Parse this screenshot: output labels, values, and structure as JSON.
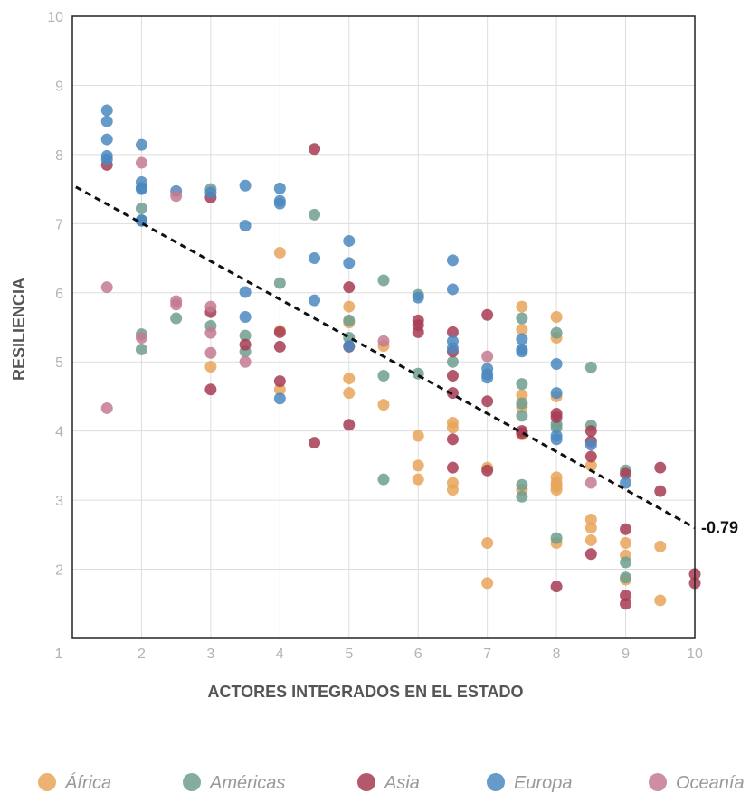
{
  "chart_data": {
    "type": "scatter",
    "xlabel": "ACTORES INTEGRADOS EN EL ESTADO",
    "ylabel": "RESILIENCIA",
    "xlim": [
      1,
      10
    ],
    "ylim": [
      1,
      10
    ],
    "xticks": [
      "1",
      "2",
      "3",
      "4",
      "5",
      "6",
      "7",
      "8",
      "9",
      "10"
    ],
    "yticks": [
      "2",
      "3",
      "4",
      "5",
      "6",
      "7",
      "8",
      "9",
      "10"
    ],
    "grid": true,
    "legend_position": "bottom",
    "trendline": {
      "label": "-0.79",
      "start": [
        1.05,
        7.53
      ],
      "end": [
        10,
        2.6
      ],
      "color": "#111111"
    },
    "series": [
      {
        "name": "África",
        "color": "#e8a55c",
        "points": [
          [
            3,
            4.93
          ],
          [
            4,
            6.58
          ],
          [
            4,
            5.45
          ],
          [
            4,
            4.6
          ],
          [
            5,
            5.57
          ],
          [
            5,
            5.8
          ],
          [
            5,
            4.76
          ],
          [
            5,
            4.55
          ],
          [
            5.5,
            5.23
          ],
          [
            5.5,
            4.38
          ],
          [
            6,
            3.93
          ],
          [
            6,
            3.5
          ],
          [
            6,
            3.3
          ],
          [
            6.5,
            4.12
          ],
          [
            6.5,
            4.05
          ],
          [
            6.5,
            3.25
          ],
          [
            6.5,
            3.15
          ],
          [
            7,
            3.47
          ],
          [
            7,
            2.38
          ],
          [
            7,
            1.8
          ],
          [
            7.5,
            5.8
          ],
          [
            7.5,
            5.47
          ],
          [
            7.5,
            4.52
          ],
          [
            7.5,
            4.35
          ],
          [
            7.5,
            3.95
          ],
          [
            7.5,
            3.15
          ],
          [
            8,
            5.65
          ],
          [
            8,
            5.35
          ],
          [
            8,
            4.5
          ],
          [
            8,
            3.33
          ],
          [
            8,
            3.25
          ],
          [
            8,
            3.2
          ],
          [
            8,
            3.15
          ],
          [
            8,
            2.38
          ],
          [
            8.5,
            3.5
          ],
          [
            8.5,
            2.72
          ],
          [
            8.5,
            2.6
          ],
          [
            8.5,
            2.42
          ],
          [
            9,
            2.38
          ],
          [
            9,
            2.2
          ],
          [
            9,
            1.85
          ],
          [
            9.5,
            2.33
          ],
          [
            9.5,
            1.55
          ]
        ]
      },
      {
        "name": "Américas",
        "color": "#6f9e8f",
        "points": [
          [
            2,
            7.22
          ],
          [
            2,
            5.4
          ],
          [
            2,
            5.18
          ],
          [
            2.5,
            5.63
          ],
          [
            3,
            7.5
          ],
          [
            3,
            5.52
          ],
          [
            3.5,
            5.38
          ],
          [
            3.5,
            5.15
          ],
          [
            4,
            6.14
          ],
          [
            4.5,
            7.13
          ],
          [
            5,
            5.6
          ],
          [
            5,
            5.35
          ],
          [
            5.5,
            6.18
          ],
          [
            5.5,
            4.8
          ],
          [
            5.5,
            3.3
          ],
          [
            6,
            5.97
          ],
          [
            6,
            4.83
          ],
          [
            6.5,
            5.0
          ],
          [
            7.5,
            5.63
          ],
          [
            7.5,
            4.68
          ],
          [
            7.5,
            4.4
          ],
          [
            7.5,
            4.22
          ],
          [
            7.5,
            3.22
          ],
          [
            7.5,
            3.05
          ],
          [
            8,
            5.42
          ],
          [
            8,
            4.1
          ],
          [
            8,
            4.05
          ],
          [
            8,
            2.45
          ],
          [
            8.5,
            4.92
          ],
          [
            8.5,
            4.08
          ],
          [
            9,
            3.43
          ],
          [
            9,
            2.1
          ],
          [
            9,
            1.88
          ]
        ]
      },
      {
        "name": "Asia",
        "color": "#a73c54",
        "points": [
          [
            1.5,
            7.85
          ],
          [
            3,
            7.38
          ],
          [
            3,
            5.72
          ],
          [
            3,
            4.6
          ],
          [
            3.5,
            5.25
          ],
          [
            4,
            5.43
          ],
          [
            4,
            5.22
          ],
          [
            4,
            4.72
          ],
          [
            4.5,
            8.08
          ],
          [
            4.5,
            3.83
          ],
          [
            5,
            6.08
          ],
          [
            5,
            5.22
          ],
          [
            5,
            4.09
          ],
          [
            6,
            5.6
          ],
          [
            6,
            5.53
          ],
          [
            6,
            5.43
          ],
          [
            6.5,
            5.43
          ],
          [
            6.5,
            5.15
          ],
          [
            6.5,
            4.8
          ],
          [
            6.5,
            4.55
          ],
          [
            6.5,
            3.88
          ],
          [
            6.5,
            3.47
          ],
          [
            7,
            5.68
          ],
          [
            7,
            4.43
          ],
          [
            7,
            3.43
          ],
          [
            7.5,
            4.0
          ],
          [
            7.5,
            3.97
          ],
          [
            8,
            4.25
          ],
          [
            8,
            4.2
          ],
          [
            8,
            1.75
          ],
          [
            8.5,
            4.0
          ],
          [
            8.5,
            3.85
          ],
          [
            8.5,
            3.63
          ],
          [
            8.5,
            2.22
          ],
          [
            9,
            3.38
          ],
          [
            9,
            2.58
          ],
          [
            9,
            1.62
          ],
          [
            9,
            1.5
          ],
          [
            9.5,
            3.47
          ],
          [
            9.5,
            3.13
          ],
          [
            10,
            1.93
          ],
          [
            10,
            1.8
          ]
        ]
      },
      {
        "name": "Europa",
        "color": "#4a88c0",
        "points": [
          [
            1.5,
            8.64
          ],
          [
            1.5,
            8.48
          ],
          [
            1.5,
            8.22
          ],
          [
            1.5,
            7.98
          ],
          [
            1.5,
            7.93
          ],
          [
            2,
            8.14
          ],
          [
            2,
            7.6
          ],
          [
            2,
            7.52
          ],
          [
            2,
            7.5
          ],
          [
            2,
            7.05
          ],
          [
            2,
            7.04
          ],
          [
            2.5,
            7.47
          ],
          [
            3,
            7.45
          ],
          [
            3.5,
            7.55
          ],
          [
            3.5,
            6.97
          ],
          [
            3.5,
            6.01
          ],
          [
            3.5,
            5.65
          ],
          [
            4,
            7.51
          ],
          [
            4,
            7.33
          ],
          [
            4,
            7.29
          ],
          [
            4,
            4.47
          ],
          [
            4.5,
            6.5
          ],
          [
            4.5,
            5.89
          ],
          [
            5,
            6.75
          ],
          [
            5,
            6.43
          ],
          [
            5,
            5.23
          ],
          [
            6,
            5.93
          ],
          [
            6.5,
            6.47
          ],
          [
            6.5,
            6.05
          ],
          [
            6.5,
            5.3
          ],
          [
            6.5,
            5.2
          ],
          [
            7,
            4.9
          ],
          [
            7,
            4.82
          ],
          [
            7,
            4.77
          ],
          [
            7.5,
            5.33
          ],
          [
            7.5,
            5.18
          ],
          [
            7.5,
            5.15
          ],
          [
            8,
            4.97
          ],
          [
            8,
            4.55
          ],
          [
            8,
            3.93
          ],
          [
            8,
            3.88
          ],
          [
            8.5,
            3.8
          ],
          [
            9,
            3.25
          ]
        ]
      },
      {
        "name": "Oceanía",
        "color": "#c47a90",
        "points": [
          [
            1.5,
            6.08
          ],
          [
            1.5,
            4.33
          ],
          [
            2,
            7.88
          ],
          [
            2,
            5.35
          ],
          [
            2.5,
            7.4
          ],
          [
            2.5,
            5.88
          ],
          [
            2.5,
            5.83
          ],
          [
            3,
            5.8
          ],
          [
            3,
            5.42
          ],
          [
            3,
            5.13
          ],
          [
            3.5,
            5.0
          ],
          [
            5.5,
            5.3
          ],
          [
            7,
            5.08
          ],
          [
            8.5,
            3.25
          ]
        ]
      }
    ]
  }
}
